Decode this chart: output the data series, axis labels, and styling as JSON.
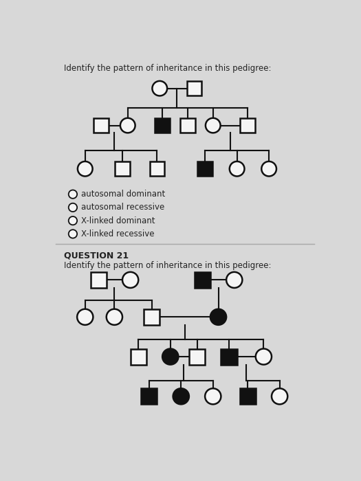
{
  "bg_color": "#d8d8d8",
  "title1": "Identify the pattern of inheritance in this pedigree:",
  "title2": "QUESTION 21",
  "title3": "Identify the pattern of inheritance in this pedigree:",
  "choices": [
    "autosomal dominant",
    "autosomal recessive",
    "X-linked dominant",
    "X-linked recessive"
  ],
  "line_color": "#111111",
  "filled_color": "#111111",
  "empty_color": "#f5f5f5",
  "text_color": "#222222",
  "radio_color": "#333333"
}
